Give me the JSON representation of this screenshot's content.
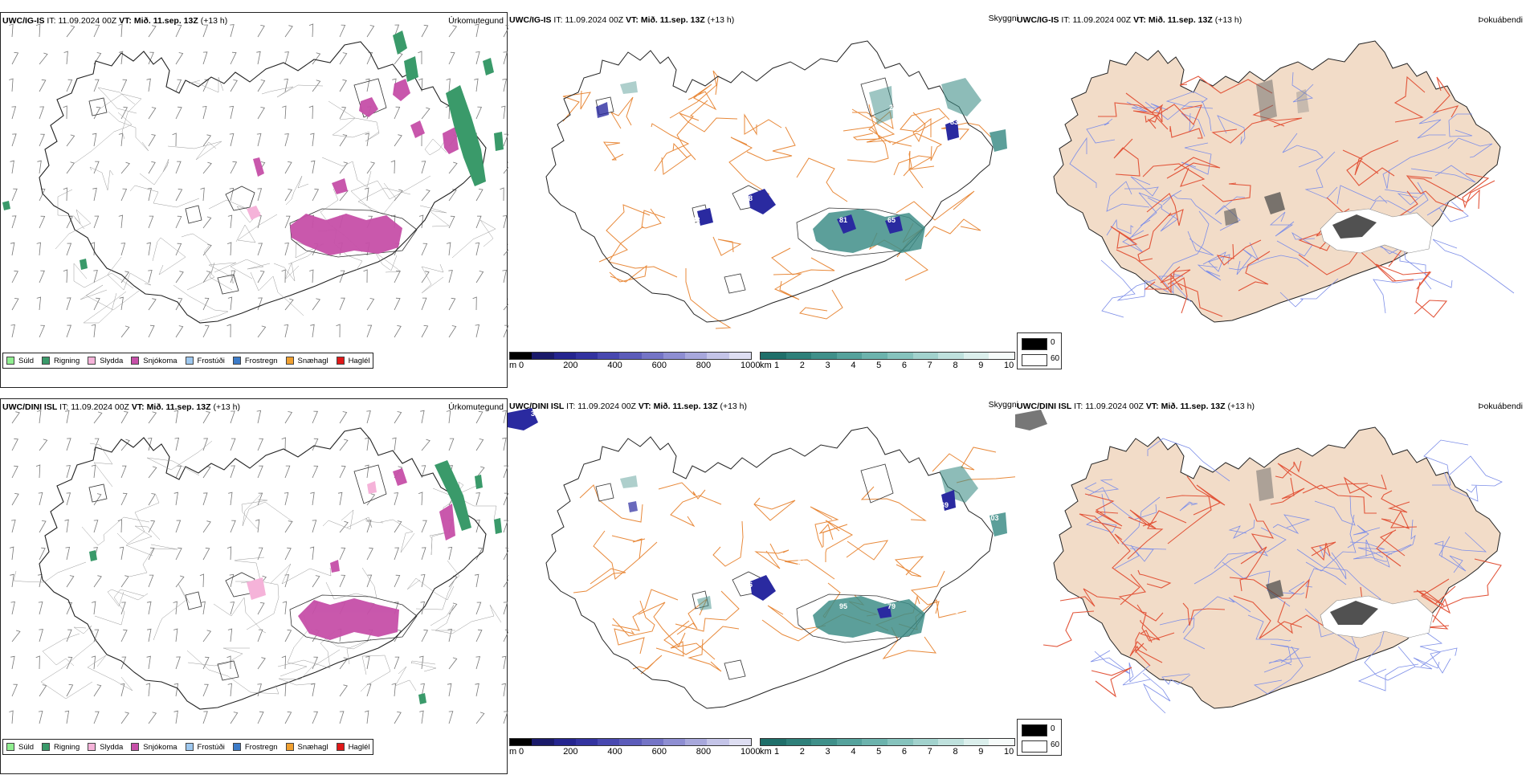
{
  "rows": [
    {
      "model": "UWC/IG-IS",
      "it_label": "IT:",
      "it_value": "11.09.2024 00Z",
      "vt_label": "VT:",
      "vt_value": "Mið. 11.sep. 13Z",
      "lead": "(+13 h)",
      "panel_titles": [
        "Úrkomutegund",
        "Skyggni",
        "Þokuábendi"
      ],
      "visibility_labels": [
        "58",
        "81",
        "65",
        "125",
        "101",
        "83",
        "186",
        "27",
        "138"
      ],
      "precip_legend": [
        "Súld",
        "Rigning",
        "Slydda",
        "Snjókoma",
        "Frostúði",
        "Frostregn",
        "Snæhagl",
        "Haglél"
      ]
    },
    {
      "model": "UWC/DINI ISL",
      "it_label": "IT:",
      "it_value": "11.09.2024 00Z",
      "vt_label": "VT:",
      "vt_value": "Mið. 11.sep. 13Z",
      "lead": "(+13 h)",
      "panel_titles": [
        "Úrkomutegund",
        "Skyggni",
        "Þokuábendi"
      ],
      "visibility_labels": [
        "66",
        "95",
        "79",
        "145",
        "34",
        "69",
        "103",
        "53"
      ],
      "precip_legend": [
        "Súld",
        "Rigning",
        "Slydda",
        "Snjókoma",
        "Frostúði",
        "Frostregn",
        "Snæhagl",
        "Haglél"
      ]
    }
  ],
  "legend_colors": [
    "#90ee90",
    "#3a9a6a",
    "#f5b3d9",
    "#c64fa8",
    "#9ec8ef",
    "#3c7bc8",
    "#f0a030",
    "#e01818"
  ],
  "cbar_height": {
    "unit": "m",
    "ticks": [
      "0",
      "200",
      "400",
      "600",
      "800",
      "1000"
    ],
    "colors": [
      "#000000",
      "#1a1a6a",
      "#25258f",
      "#3333a0",
      "#4848b0",
      "#5c5cba",
      "#7474c6",
      "#8e8ed2",
      "#a8a8dc",
      "#c4c4e8",
      "#dedef2"
    ]
  },
  "cbar_vis": {
    "unit": "km",
    "ticks": [
      "1",
      "2",
      "3",
      "4",
      "5",
      "6",
      "7",
      "8",
      "9",
      "10"
    ],
    "colors": [
      "#1f6f6a",
      "#2e807a",
      "#3f908a",
      "#55a29c",
      "#6cb3ad",
      "#86c3bd",
      "#a2d2cd",
      "#bfe1dd",
      "#dbefec",
      "#f6fbfa"
    ]
  },
  "fog_legend": {
    "values": [
      "0",
      "60"
    ]
  },
  "colors": {
    "coast": "#222222",
    "orange_roads": "#e8893a",
    "red_roads": "#e2553a",
    "rivers": "#7d8ee8",
    "land_fog": "#f2dcc8",
    "snow": "#c64fa8",
    "rain": "#3a9a6a",
    "vis_blue": "#2a2aa0",
    "vis_teal": "#3f8e88"
  }
}
